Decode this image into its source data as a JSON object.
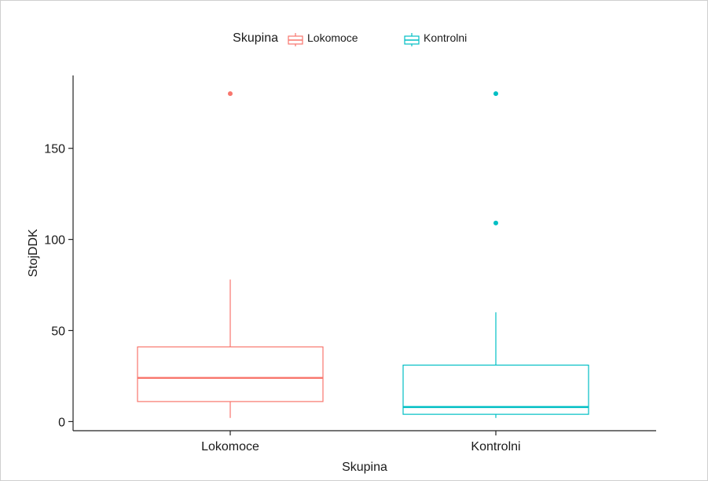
{
  "chart_data": {
    "type": "boxplot",
    "xlabel": "Skupina",
    "ylabel": "StojDDK",
    "ylim": [
      -5,
      190
    ],
    "y_ticks": [
      0,
      50,
      100,
      150
    ],
    "grid": false,
    "legend": {
      "title": "Skupina",
      "position": "top",
      "entries": [
        "Lokomoce",
        "Kontrolni"
      ]
    },
    "categories": [
      "Lokomoce",
      "Kontrolni"
    ],
    "series": [
      {
        "name": "Lokomoce",
        "color": "#f8766d",
        "min": 2,
        "q1": 11,
        "median": 24,
        "q3": 41,
        "max": 78,
        "outliers": [
          180
        ]
      },
      {
        "name": "Kontrolni",
        "color": "#00bfc4",
        "min": 2,
        "q1": 4,
        "median": 8,
        "q3": 31,
        "max": 60,
        "outliers": [
          109,
          180
        ]
      }
    ]
  }
}
